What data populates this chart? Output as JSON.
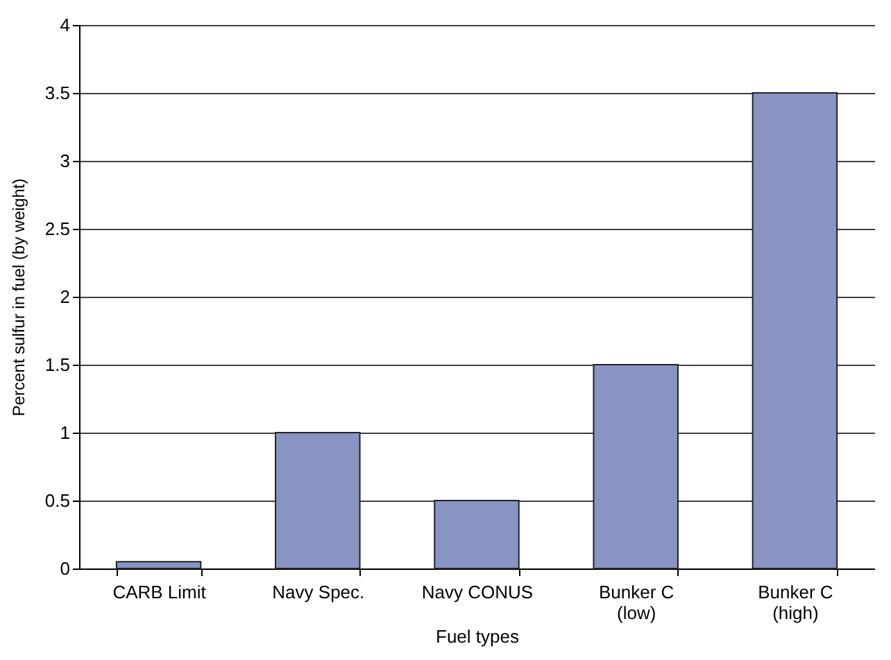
{
  "chart_data": {
    "type": "bar",
    "xlabel": "Fuel types",
    "ylabel": "Percent sulfur in fuel (by weight)",
    "categories": [
      "CARB Limit",
      "Navy Spec.",
      "Navy CONUS",
      "Bunker C (low)",
      "Bunker C (high)"
    ],
    "values": [
      0.05,
      1,
      0.5,
      1.5,
      3.5
    ],
    "color": "#8794c4",
    "ylim": [
      0,
      4
    ],
    "yticks": [
      0,
      0.5,
      1,
      1.5,
      2,
      2.5,
      3,
      3.5,
      4
    ],
    "grid": "y"
  }
}
